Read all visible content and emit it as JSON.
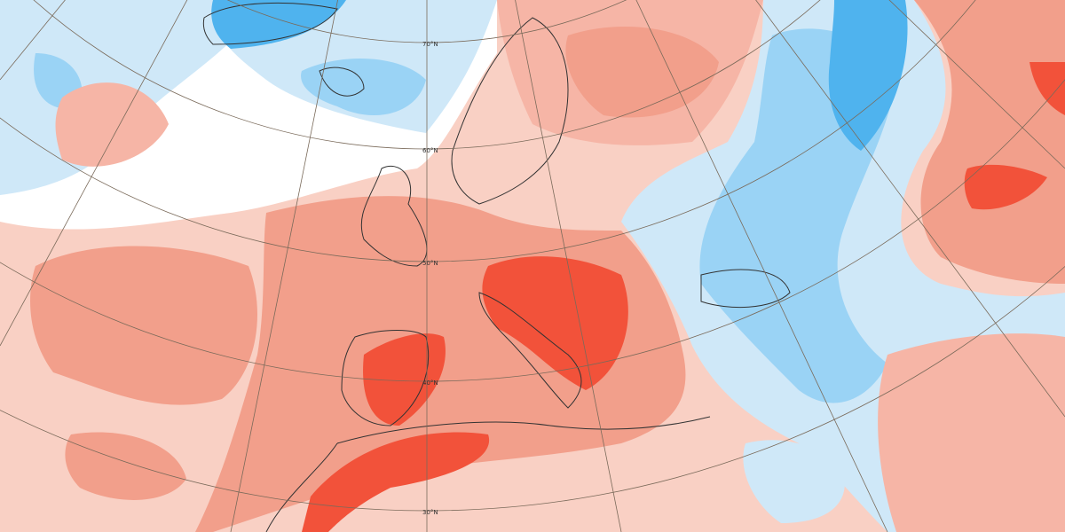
{
  "graticule": {
    "latitude_labels": [
      "70°N",
      "60°N",
      "50°N",
      "40°N",
      "30°N"
    ]
  }
}
